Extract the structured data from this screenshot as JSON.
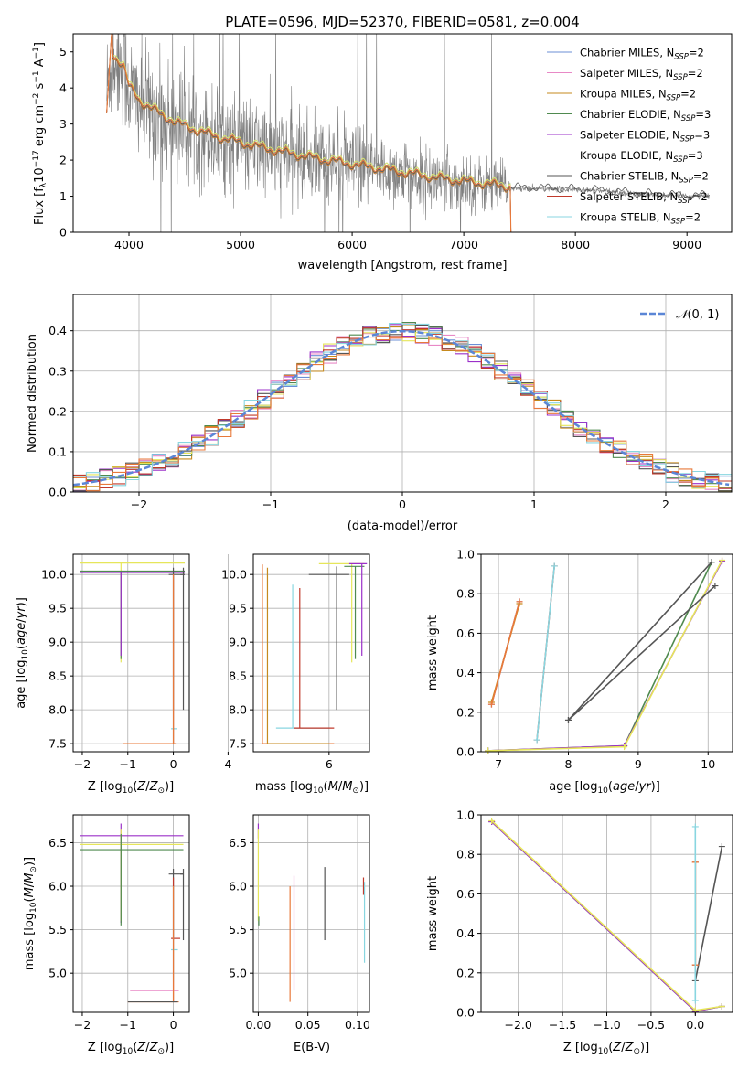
{
  "colors": {
    "chabrier_miles": "#6b8fd6",
    "salpeter_miles": "#e889c6",
    "kroupa_miles": "#c68a1d",
    "chabrier_elodie": "#4f8a4f",
    "salpeter_elodie": "#9b30c9",
    "kroupa_elodie": "#e6e65a",
    "chabrier_stelib": "#555555",
    "salpeter_stelib": "#c0392b",
    "kroupa_stelib": "#88d6e0",
    "data_grey": "#808080",
    "model_orange": "#e8793a",
    "gauss": "#5b86d6"
  },
  "chart_data": [
    {
      "id": "spectrum",
      "type": "line",
      "title": "PLATE=0596, MJD=52370, FIBERID=0581, z=0.004",
      "xlabel": "wavelength [Angstrom, rest frame]",
      "ylabel_parts": [
        "Flux [f",
        "λ",
        "10",
        "−17",
        " erg cm",
        "−2",
        " s",
        "−1",
        " A",
        "−1",
        "]"
      ],
      "xlim": [
        3500,
        9400
      ],
      "ylim": [
        0,
        5.5
      ],
      "xticks": [
        "4000",
        "5000",
        "6000",
        "7000",
        "8000",
        "9000"
      ],
      "yticks": [
        "0",
        "1",
        "2",
        "3",
        "4",
        "5"
      ],
      "grid": false,
      "legend_position": "top-right",
      "legend": [
        {
          "name": "Chabrier MILES, N",
          "sub": "SSP",
          "tail": "=2",
          "color_key": "chabrier_miles"
        },
        {
          "name": "Salpeter MILES, N",
          "sub": "SSP",
          "tail": "=2",
          "color_key": "salpeter_miles"
        },
        {
          "name": "Kroupa MILES, N",
          "sub": "SSP",
          "tail": "=2",
          "color_key": "kroupa_miles"
        },
        {
          "name": "Chabrier ELODIE, N",
          "sub": "SSP",
          "tail": "=3",
          "color_key": "chabrier_elodie"
        },
        {
          "name": "Salpeter ELODIE, N",
          "sub": "SSP",
          "tail": "=3",
          "color_key": "salpeter_elodie"
        },
        {
          "name": "Kroupa ELODIE, N",
          "sub": "SSP",
          "tail": "=3",
          "color_key": "kroupa_elodie"
        },
        {
          "name": "Chabrier STELIB, N",
          "sub": "SSP",
          "tail": "=2",
          "color_key": "chabrier_stelib"
        },
        {
          "name": "Salpeter STELIB, N",
          "sub": "SSP",
          "tail": "=2",
          "color_key": "salpeter_stelib"
        },
        {
          "name": "Kroupa STELIB, N",
          "sub": "SSP",
          "tail": "=2",
          "color_key": "kroupa_stelib"
        }
      ],
      "continuum_shape": [
        [
          3800,
          3.9
        ],
        [
          3850,
          4.9
        ],
        [
          3950,
          4.6
        ],
        [
          4000,
          4.0
        ],
        [
          4100,
          3.6
        ],
        [
          4300,
          3.2
        ],
        [
          4500,
          2.9
        ],
        [
          4800,
          2.6
        ],
        [
          5200,
          2.3
        ],
        [
          5600,
          2.05
        ],
        [
          6000,
          1.85
        ],
        [
          6400,
          1.65
        ],
        [
          6800,
          1.45
        ],
        [
          7200,
          1.3
        ],
        [
          7420,
          1.22
        ],
        [
          7800,
          1.2
        ],
        [
          8200,
          1.15
        ],
        [
          8600,
          1.05
        ],
        [
          9000,
          1.0
        ],
        [
          9200,
          1.0
        ]
      ]
    },
    {
      "id": "residuals",
      "type": "histogram",
      "xlabel": "(data-model)/error",
      "ylabel": "Normed distribution",
      "xlim": [
        -2.5,
        2.5
      ],
      "ylim": [
        0,
        0.49
      ],
      "xticks": [
        "−2",
        "−1",
        "0",
        "1",
        "2"
      ],
      "yticks": [
        "0.0",
        "0.1",
        "0.2",
        "0.3",
        "0.4"
      ],
      "grid": true,
      "legend_position": "top-right",
      "legend": [
        {
          "name": "N(0, 1)",
          "color_key": "gauss"
        }
      ],
      "bin_width": 0.1
    },
    {
      "id": "age_vs_Z",
      "type": "errorbar",
      "xlabel": "Z [log10(Z/Z⊙)]",
      "ylabel": "age  [log10(age/yr)]",
      "xlim": [
        -2.2,
        0.35
      ],
      "ylim": [
        7.38,
        10.3
      ],
      "xticks": [
        "−2",
        "−1",
        "0"
      ],
      "yticks": [
        "7.5",
        "8.0",
        "8.5",
        "9.0",
        "9.5",
        "10.0"
      ],
      "grid": true
    },
    {
      "id": "age_vs_mass",
      "type": "errorbar",
      "xlabel": "mass [log10(M/M⊙)]",
      "ylabel": "",
      "xlim": [
        4.5,
        6.8
      ],
      "ylim": [
        7.38,
        10.3
      ],
      "xticks": [
        "4",
        "6"
      ],
      "yticks": [
        "7.5",
        "8.0",
        "8.5",
        "9.0",
        "9.5",
        "10.0"
      ],
      "grid": true
    },
    {
      "id": "weight_vs_age",
      "type": "line",
      "xlabel": "age  [log10(age/yr)]",
      "ylabel": "mass weight",
      "xlim": [
        6.75,
        10.35
      ],
      "ylim": [
        0,
        1
      ],
      "xticks": [
        "7",
        "8",
        "9",
        "10"
      ],
      "yticks": [
        "0.0",
        "0.2",
        "0.4",
        "0.6",
        "0.8",
        "1.0"
      ],
      "grid": true,
      "series": [
        {
          "color_key": "chabrier_miles",
          "x": [
            6.9,
            7.3
          ],
          "y": [
            0.24,
            0.76
          ]
        },
        {
          "color_key": "salpeter_miles",
          "x": [
            6.9,
            7.3
          ],
          "y": [
            0.24,
            0.76
          ]
        },
        {
          "color_key": "kroupa_miles",
          "x": [
            6.9,
            7.3
          ],
          "y": [
            0.25,
            0.75
          ]
        },
        {
          "color_key": "model_orange",
          "x": [
            6.9,
            7.3
          ],
          "y": [
            0.24,
            0.76
          ]
        },
        {
          "color_key": "chabrier_elodie",
          "x": [
            6.85,
            8.8,
            10.05
          ],
          "y": [
            0.005,
            0.03,
            0.96
          ]
        },
        {
          "color_key": "salpeter_elodie",
          "x": [
            6.85,
            8.8,
            10.2
          ],
          "y": [
            0.005,
            0.03,
            0.965
          ]
        },
        {
          "color_key": "kroupa_elodie",
          "x": [
            6.85,
            8.8,
            10.2
          ],
          "y": [
            0.005,
            0.025,
            0.97
          ]
        },
        {
          "color_key": "chabrier_stelib",
          "x": [
            8.0,
            10.1
          ],
          "y": [
            0.16,
            0.84
          ]
        },
        {
          "color_key": "salpeter_stelib",
          "x": [
            7.55,
            7.8
          ],
          "y": [
            0.06,
            0.94
          ]
        },
        {
          "color_key": "kroupa_stelib",
          "x": [
            7.55,
            7.8
          ],
          "y": [
            0.06,
            0.94
          ]
        }
      ],
      "extra_lines": [
        {
          "color_key": "chabrier_stelib",
          "x": [
            8.0,
            10.05
          ],
          "y": [
            0.16,
            0.96
          ]
        }
      ]
    },
    {
      "id": "mass_vs_Z",
      "type": "errorbar",
      "xlabel": "Z [log10(Z/Z⊙)]",
      "ylabel": "mass [log10(M/M⊙)]",
      "xlim": [
        -2.2,
        0.35
      ],
      "ylim": [
        4.55,
        6.82
      ],
      "xticks": [
        "−2",
        "−1",
        "0"
      ],
      "yticks": [
        "5.0",
        "5.5",
        "6.0",
        "6.5"
      ],
      "grid": true
    },
    {
      "id": "mass_vs_EBV",
      "type": "errorbar",
      "xlabel": "E(B-V)",
      "ylabel": "",
      "xlim": [
        -0.005,
        0.112
      ],
      "ylim": [
        4.55,
        6.82
      ],
      "xticks": [
        "0.00",
        "0.05",
        "0.10"
      ],
      "yticks": [
        "5.0",
        "5.5",
        "6.0",
        "6.5"
      ],
      "grid": true
    },
    {
      "id": "weight_vs_Z",
      "type": "line",
      "xlabel": "Z [log10(Z/Z⊙)]",
      "ylabel": "mass weight",
      "xlim": [
        -2.42,
        0.42
      ],
      "ylim": [
        0,
        1
      ],
      "xticks": [
        "−2.0",
        "−1.5",
        "−1.0",
        "−0.5",
        "0.0"
      ],
      "yticks": [
        "0.0",
        "0.2",
        "0.4",
        "0.6",
        "0.8",
        "1.0"
      ],
      "grid": true,
      "series": [
        {
          "color_key": "chabrier_elodie",
          "x": [
            -2.3,
            0.0,
            0.3
          ],
          "y": [
            0.965,
            0.005,
            0.03
          ]
        },
        {
          "color_key": "salpeter_elodie",
          "x": [
            -2.3,
            0.0,
            0.3
          ],
          "y": [
            0.965,
            0.005,
            0.03
          ]
        },
        {
          "color_key": "kroupa_elodie",
          "x": [
            -2.3,
            0.0,
            0.3
          ],
          "y": [
            0.97,
            0.01,
            0.03
          ]
        },
        {
          "color_key": "chabrier_stelib",
          "x": [
            0.0,
            0.3
          ],
          "y": [
            0.16,
            0.84
          ]
        },
        {
          "color_key": "salpeter_stelib",
          "x": [
            0.0,
            0.0
          ],
          "y": [
            0.24,
            0.76
          ]
        },
        {
          "color_key": "model_orange",
          "x": [
            0.0,
            0.0
          ],
          "y": [
            0.24,
            0.76
          ]
        },
        {
          "color_key": "kroupa_stelib",
          "x": [
            0.0,
            0.0
          ],
          "y": [
            0.06,
            0.94
          ]
        }
      ]
    }
  ]
}
